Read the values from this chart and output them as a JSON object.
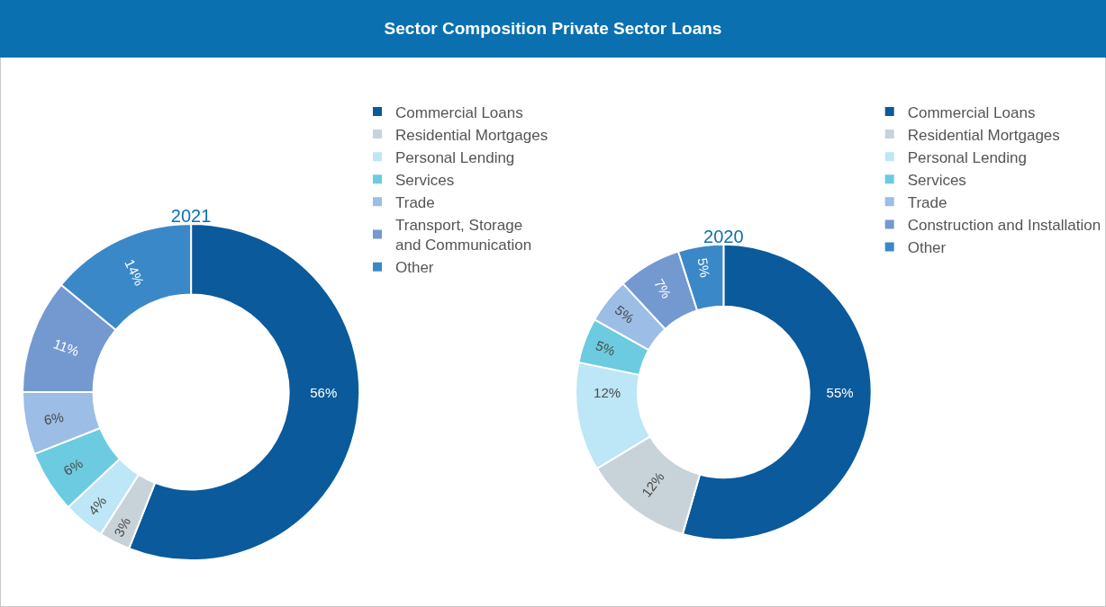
{
  "chart_data": [
    {
      "type": "donut",
      "title": "Sector Composition Private Sector Loans",
      "subtitle": "2021",
      "categories": [
        "Commercial Loans",
        "Residential Mortgages",
        "Personal Lending",
        "Services",
        "Trade",
        "Transport, Storage and Communication",
        "Other"
      ],
      "values": [
        56,
        3,
        4,
        6,
        6,
        11,
        14
      ],
      "value_labels": [
        "56%",
        "3%",
        "4%",
        "6%",
        "6%",
        "11%",
        "14%"
      ],
      "colors": [
        "#0a5a9c",
        "#c8d3d9",
        "#bde6f7",
        "#6ccbe0",
        "#9bbde6",
        "#7499d1",
        "#3b88c8"
      ],
      "legend": "top right"
    },
    {
      "type": "donut",
      "subtitle": "2020",
      "categories": [
        "Commercial Loans",
        "Residential Mortgages",
        "Personal Lending",
        "Services",
        "Trade",
        "Construction and Installation",
        "Other"
      ],
      "values": [
        55,
        12,
        12,
        5,
        5,
        7,
        5
      ],
      "value_labels": [
        "55%",
        "12%",
        "12%",
        "5%",
        "5%",
        "7%",
        "5%"
      ],
      "colors": [
        "#0a5a9c",
        "#c8d3d9",
        "#bde6f7",
        "#6ccbe0",
        "#9bbde6",
        "#7499d1",
        "#3b88c8"
      ],
      "legend": "top right"
    }
  ]
}
